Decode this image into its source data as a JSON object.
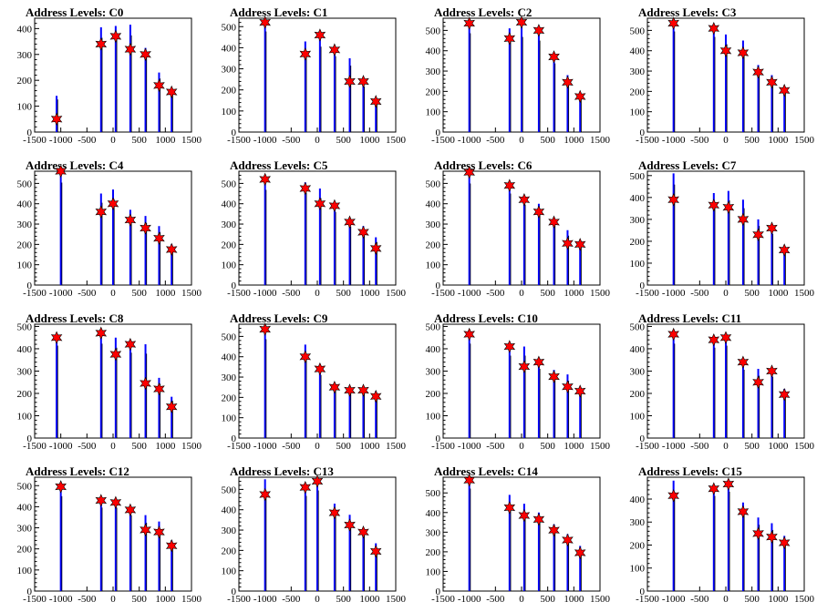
{
  "colors": {
    "histogram": "#0000ff",
    "histogram_dark": "#000000",
    "marker": "#ff0000",
    "axis": "#000000"
  },
  "chart_data": [
    {
      "type": "bar",
      "title": "Address Levels: C0",
      "xlim": [
        -1500,
        1500
      ],
      "ylim": [
        0,
        440
      ],
      "yticks": [
        0,
        100,
        200,
        300,
        400
      ],
      "xticks": [
        -1500,
        -1000,
        -500,
        0,
        500,
        1000,
        1500
      ],
      "xtick_labels": [
        "-1500",
        "-1000",
        "-500",
        "0",
        "500",
        "1000",
        "1500"
      ],
      "x": [
        -1080,
        -230,
        50,
        330,
        620,
        880,
        1120
      ],
      "values": [
        140,
        405,
        410,
        415,
        325,
        230,
        170
      ],
      "markers": [
        50,
        340,
        370,
        320,
        300,
        180,
        155
      ]
    },
    {
      "type": "bar",
      "title": "Address Levels: C1",
      "xlim": [
        -1500,
        1500
      ],
      "ylim": [
        0,
        540
      ],
      "yticks": [
        0,
        100,
        200,
        300,
        400,
        500
      ],
      "xticks": [
        -1500,
        -1000,
        -500,
        0,
        500,
        1000,
        1500
      ],
      "xtick_labels": [
        "-1500",
        "-1000",
        "-500",
        "0",
        "500",
        "1000",
        "1500"
      ],
      "x": [
        -1000,
        -230,
        50,
        330,
        620,
        880,
        1120
      ],
      "values": [
        530,
        430,
        450,
        400,
        350,
        240,
        150
      ],
      "markers": [
        520,
        370,
        460,
        390,
        240,
        240,
        145
      ]
    },
    {
      "type": "bar",
      "title": "Address Levels: C2",
      "xlim": [
        -1500,
        1500
      ],
      "ylim": [
        0,
        560
      ],
      "yticks": [
        0,
        100,
        200,
        300,
        400,
        500
      ],
      "xticks": [
        -1500,
        -1000,
        -500,
        0,
        500,
        1000,
        1500
      ],
      "xtick_labels": [
        "-1500",
        "-1000",
        "-500",
        "0",
        "500",
        "1000",
        "1500"
      ],
      "x": [
        -1000,
        -230,
        0,
        330,
        620,
        880,
        1120
      ],
      "values": [
        540,
        510,
        520,
        500,
        375,
        280,
        180
      ],
      "markers": [
        535,
        460,
        540,
        500,
        370,
        245,
        175
      ]
    },
    {
      "type": "bar",
      "title": "Address Levels: C3",
      "xlim": [
        -1500,
        1500
      ],
      "ylim": [
        0,
        560
      ],
      "yticks": [
        0,
        100,
        200,
        300,
        400,
        500
      ],
      "xticks": [
        -1500,
        -1000,
        -500,
        0,
        500,
        1000,
        1500
      ],
      "xtick_labels": [
        "-1500",
        "-1000",
        "-500",
        "0",
        "500",
        "1000",
        "1500"
      ],
      "x": [
        -1000,
        -230,
        0,
        330,
        620,
        880,
        1120
      ],
      "values": [
        550,
        520,
        480,
        450,
        330,
        280,
        215
      ],
      "markers": [
        535,
        510,
        400,
        390,
        295,
        245,
        205
      ]
    },
    {
      "type": "bar",
      "title": "Address Levels: C4",
      "xlim": [
        -1500,
        1500
      ],
      "ylim": [
        0,
        560
      ],
      "yticks": [
        0,
        100,
        200,
        300,
        400,
        500
      ],
      "xticks": [
        -1500,
        -1000,
        -500,
        0,
        500,
        1000,
        1500
      ],
      "xtick_labels": [
        "-1500",
        "-1000",
        "-500",
        "0",
        "500",
        "1000",
        "1500"
      ],
      "x": [
        -1000,
        -230,
        0,
        330,
        620,
        880,
        1120
      ],
      "values": [
        560,
        450,
        470,
        370,
        340,
        290,
        200
      ],
      "markers": [
        560,
        360,
        400,
        320,
        280,
        230,
        175
      ]
    },
    {
      "type": "bar",
      "title": "Address Levels: C5",
      "xlim": [
        -1500,
        1500
      ],
      "ylim": [
        0,
        560
      ],
      "yticks": [
        0,
        100,
        200,
        300,
        400,
        500
      ],
      "xticks": [
        -1500,
        -1000,
        -500,
        0,
        500,
        1000,
        1500
      ],
      "xtick_labels": [
        "-1500",
        "-1000",
        "-500",
        "0",
        "500",
        "1000",
        "1500"
      ],
      "x": [
        -1000,
        -230,
        50,
        330,
        620,
        880,
        1120
      ],
      "values": [
        520,
        505,
        475,
        400,
        320,
        290,
        235
      ],
      "markers": [
        520,
        475,
        400,
        390,
        310,
        260,
        180
      ]
    },
    {
      "type": "bar",
      "title": "Address Levels: C6",
      "xlim": [
        -1500,
        1500
      ],
      "ylim": [
        0,
        560
      ],
      "yticks": [
        0,
        100,
        200,
        300,
        400,
        500
      ],
      "xticks": [
        -1500,
        -1000,
        -500,
        0,
        500,
        1000,
        1500
      ],
      "xtick_labels": [
        "-1500",
        "-1000",
        "-500",
        "0",
        "500",
        "1000",
        "1500"
      ],
      "x": [
        -1000,
        -230,
        50,
        330,
        620,
        880,
        1120
      ],
      "values": [
        555,
        500,
        440,
        400,
        330,
        270,
        215
      ],
      "markers": [
        555,
        490,
        420,
        360,
        310,
        205,
        200
      ]
    },
    {
      "type": "bar",
      "title": "Address Levels: C7",
      "xlim": [
        -1500,
        1500
      ],
      "ylim": [
        0,
        520
      ],
      "yticks": [
        0,
        100,
        200,
        300,
        400,
        500
      ],
      "xticks": [
        -1500,
        -1000,
        -500,
        0,
        500,
        1000,
        1500
      ],
      "xtick_labels": [
        "-1500",
        "-1000",
        "-500",
        "0",
        "500",
        "1000",
        "1500"
      ],
      "x": [
        -1000,
        -230,
        50,
        330,
        620,
        880,
        1120
      ],
      "values": [
        510,
        420,
        430,
        390,
        300,
        260,
        180
      ],
      "markers": [
        390,
        365,
        355,
        300,
        230,
        260,
        160
      ]
    },
    {
      "type": "bar",
      "title": "Address Levels: C8",
      "xlim": [
        -1500,
        1500
      ],
      "ylim": [
        0,
        510
      ],
      "yticks": [
        0,
        100,
        200,
        300,
        400,
        500
      ],
      "xticks": [
        -1500,
        -1000,
        -500,
        0,
        500,
        1000,
        1500
      ],
      "xtick_labels": [
        "-1500",
        "-1000",
        "-500",
        "0",
        "500",
        "1000",
        "1500"
      ],
      "x": [
        -1080,
        -230,
        50,
        330,
        620,
        880,
        1120
      ],
      "values": [
        460,
        470,
        450,
        425,
        420,
        270,
        185
      ],
      "markers": [
        450,
        470,
        375,
        420,
        245,
        220,
        140
      ]
    },
    {
      "type": "bar",
      "title": "Address Levels: C9",
      "xlim": [
        -1500,
        1500
      ],
      "ylim": [
        0,
        560
      ],
      "yticks": [
        0,
        100,
        200,
        300,
        400,
        500
      ],
      "xticks": [
        -1500,
        -1000,
        -500,
        0,
        500,
        1000,
        1500
      ],
      "xtick_labels": [
        "-1500",
        "-1000",
        "-500",
        "0",
        "500",
        "1000",
        "1500"
      ],
      "x": [
        -1000,
        -230,
        50,
        330,
        620,
        880,
        1120
      ],
      "values": [
        540,
        460,
        345,
        270,
        250,
        250,
        230
      ],
      "markers": [
        535,
        400,
        340,
        250,
        235,
        235,
        205
      ]
    },
    {
      "type": "bar",
      "title": "Address Levels: C10",
      "xlim": [
        -1500,
        1500
      ],
      "ylim": [
        0,
        510
      ],
      "yticks": [
        0,
        100,
        200,
        300,
        400,
        500
      ],
      "xticks": [
        -1500,
        -1000,
        -500,
        0,
        500,
        1000,
        1500
      ],
      "xtick_labels": [
        "-1500",
        "-1000",
        "-500",
        "0",
        "500",
        "1000",
        "1500"
      ],
      "x": [
        -1000,
        -230,
        50,
        330,
        620,
        880,
        1120
      ],
      "values": [
        470,
        410,
        410,
        345,
        305,
        285,
        230
      ],
      "markers": [
        465,
        410,
        320,
        340,
        275,
        230,
        210
      ]
    },
    {
      "type": "bar",
      "title": "Address Levels: C11",
      "xlim": [
        -1500,
        1500
      ],
      "ylim": [
        0,
        510
      ],
      "yticks": [
        0,
        100,
        200,
        300,
        400,
        500
      ],
      "xticks": [
        -1500,
        -1000,
        -500,
        0,
        500,
        1000,
        1500
      ],
      "xtick_labels": [
        "-1500",
        "-1000",
        "-500",
        "0",
        "500",
        "1000",
        "1500"
      ],
      "x": [
        -1000,
        -230,
        0,
        330,
        620,
        880,
        1120
      ],
      "values": [
        470,
        450,
        460,
        340,
        310,
        305,
        220
      ],
      "markers": [
        465,
        440,
        450,
        340,
        250,
        300,
        195
      ]
    },
    {
      "type": "bar",
      "title": "Address Levels: C12",
      "xlim": [
        -1500,
        1500
      ],
      "ylim": [
        0,
        540
      ],
      "yticks": [
        0,
        100,
        200,
        300,
        400,
        500
      ],
      "xticks": [
        -1500,
        -1000,
        -500,
        0,
        500,
        1000,
        1500
      ],
      "xtick_labels": [
        "-1500",
        "-1000",
        "-500",
        "0",
        "500",
        "1000",
        "1500"
      ],
      "x": [
        -1000,
        -230,
        50,
        330,
        620,
        880,
        1120
      ],
      "values": [
        500,
        440,
        440,
        400,
        360,
        330,
        240
      ],
      "markers": [
        495,
        430,
        420,
        385,
        290,
        280,
        215
      ]
    },
    {
      "type": "bar",
      "title": "Address Levels: C13",
      "xlim": [
        -1500,
        1500
      ],
      "ylim": [
        0,
        560
      ],
      "yticks": [
        0,
        100,
        200,
        300,
        400,
        500
      ],
      "xticks": [
        -1500,
        -1000,
        -500,
        0,
        500,
        1000,
        1500
      ],
      "xtick_labels": [
        "-1500",
        "-1000",
        "-500",
        "0",
        "500",
        "1000",
        "1500"
      ],
      "x": [
        -1000,
        -230,
        0,
        330,
        620,
        880,
        1120
      ],
      "values": [
        550,
        520,
        550,
        430,
        375,
        305,
        235
      ],
      "markers": [
        475,
        510,
        540,
        385,
        325,
        290,
        195
      ]
    },
    {
      "type": "bar",
      "title": "Address Levels: C14",
      "xlim": [
        -1500,
        1500
      ],
      "ylim": [
        0,
        580
      ],
      "yticks": [
        0,
        100,
        200,
        300,
        400,
        500
      ],
      "xticks": [
        -1500,
        -1000,
        -500,
        0,
        500,
        1000,
        1500
      ],
      "xtick_labels": [
        "-1500",
        "-1000",
        "-500",
        "0",
        "500",
        "1000",
        "1500"
      ],
      "x": [
        -1000,
        -230,
        50,
        330,
        620,
        880,
        1120
      ],
      "values": [
        580,
        490,
        445,
        400,
        340,
        290,
        230
      ],
      "markers": [
        565,
        425,
        385,
        365,
        310,
        260,
        195
      ]
    },
    {
      "type": "bar",
      "title": "Address Levels: C15",
      "xlim": [
        -1500,
        1500
      ],
      "ylim": [
        0,
        495
      ],
      "yticks": [
        0,
        100,
        200,
        300,
        400
      ],
      "xticks": [
        -1500,
        -1000,
        -500,
        0,
        500,
        1000,
        1500
      ],
      "xtick_labels": [
        "-1500",
        "-1000",
        "-500",
        "0",
        "500",
        "1000",
        "1500"
      ],
      "x": [
        -1000,
        -230,
        50,
        330,
        620,
        880,
        1120
      ],
      "values": [
        480,
        460,
        480,
        385,
        320,
        295,
        240
      ],
      "markers": [
        415,
        445,
        465,
        345,
        250,
        235,
        210
      ]
    }
  ]
}
